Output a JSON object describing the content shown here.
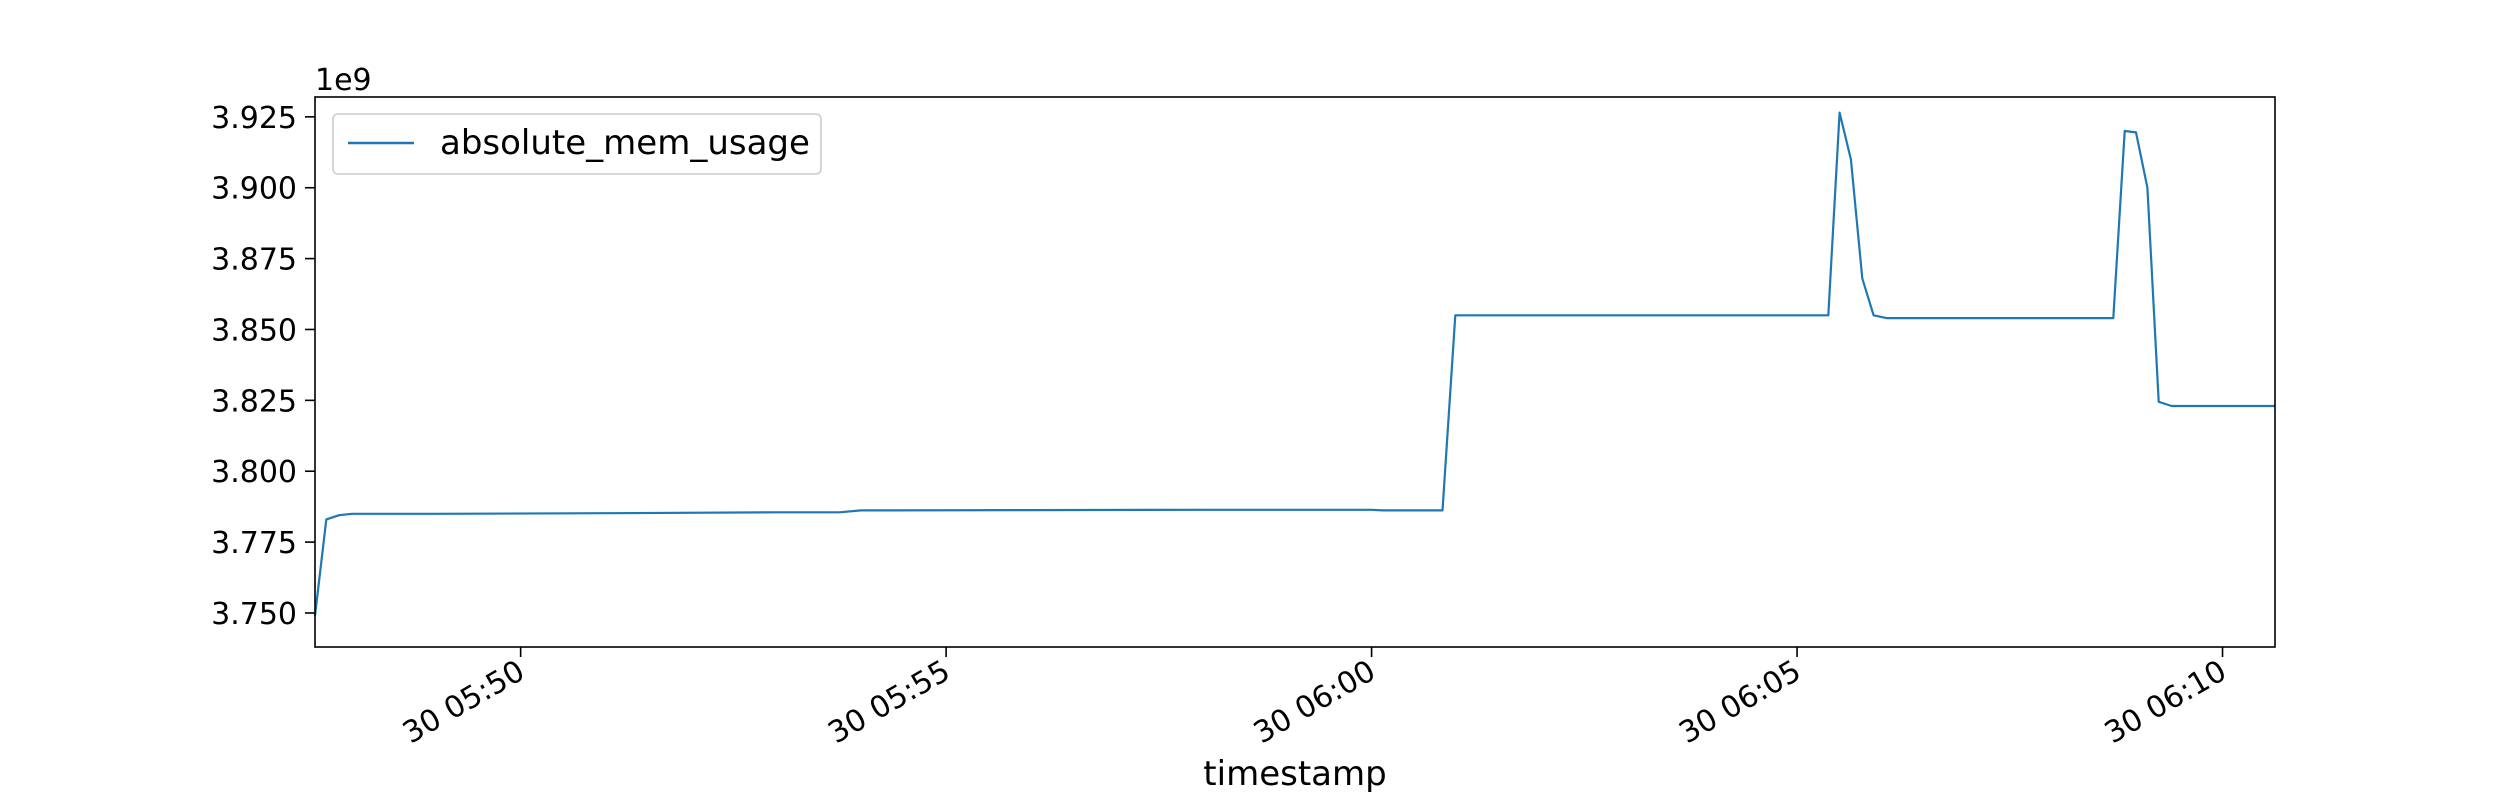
{
  "chart_data": {
    "type": "line",
    "title": "",
    "xlabel": "timestamp",
    "ylabel": "",
    "y_offset_label": "1e9",
    "x_range": [
      "05:47:35",
      "06:10:37"
    ],
    "ylim": [
      3.738,
      3.932
    ],
    "grid": false,
    "legend_position": "top-left",
    "x_ticks": [
      {
        "t": "05:50:00",
        "label": "30 05:50"
      },
      {
        "t": "05:55:00",
        "label": "30 05:55"
      },
      {
        "t": "06:00:00",
        "label": "30 06:00"
      },
      {
        "t": "06:05:00",
        "label": "30 06:05"
      },
      {
        "t": "06:10:00",
        "label": "30 06:10"
      }
    ],
    "y_ticks": [
      {
        "v": 3.75,
        "label": "3.750"
      },
      {
        "v": 3.775,
        "label": "3.775"
      },
      {
        "v": 3.8,
        "label": "3.800"
      },
      {
        "v": 3.825,
        "label": "3.825"
      },
      {
        "v": 3.85,
        "label": "3.850"
      },
      {
        "v": 3.875,
        "label": "3.875"
      },
      {
        "v": 3.9,
        "label": "3.900"
      },
      {
        "v": 3.925,
        "label": "3.925"
      }
    ],
    "series": [
      {
        "name": "absolute_mem_usage",
        "color": "#1f77b4",
        "points": [
          {
            "t": "05:47:35",
            "y": 3.749
          },
          {
            "t": "05:47:43",
            "y": 3.783
          },
          {
            "t": "05:47:52",
            "y": 3.7845
          },
          {
            "t": "05:48:01",
            "y": 3.785
          },
          {
            "t": "05:49:00",
            "y": 3.785
          },
          {
            "t": "05:51:00",
            "y": 3.7852
          },
          {
            "t": "05:53:00",
            "y": 3.7855
          },
          {
            "t": "05:53:45",
            "y": 3.7855
          },
          {
            "t": "05:54:00",
            "y": 3.7862
          },
          {
            "t": "05:56:00",
            "y": 3.7863
          },
          {
            "t": "05:58:00",
            "y": 3.7864
          },
          {
            "t": "06:00:00",
            "y": 3.7864
          },
          {
            "t": "06:00:08",
            "y": 3.7862
          },
          {
            "t": "06:00:50",
            "y": 3.7862
          },
          {
            "t": "06:00:59",
            "y": 3.855
          },
          {
            "t": "06:02:00",
            "y": 3.855
          },
          {
            "t": "06:03:00",
            "y": 3.855
          },
          {
            "t": "06:05:00",
            "y": 3.855
          },
          {
            "t": "06:05:22",
            "y": 3.855
          },
          {
            "t": "06:05:30",
            "y": 3.9265
          },
          {
            "t": "06:05:38",
            "y": 3.91
          },
          {
            "t": "06:05:46",
            "y": 3.868
          },
          {
            "t": "06:05:54",
            "y": 3.855
          },
          {
            "t": "06:06:03",
            "y": 3.854
          },
          {
            "t": "06:07:00",
            "y": 3.854
          },
          {
            "t": "06:08:00",
            "y": 3.854
          },
          {
            "t": "06:08:43",
            "y": 3.854
          },
          {
            "t": "06:08:51",
            "y": 3.92
          },
          {
            "t": "06:08:59",
            "y": 3.9195
          },
          {
            "t": "06:09:07",
            "y": 3.9
          },
          {
            "t": "06:09:15",
            "y": 3.8245
          },
          {
            "t": "06:09:24",
            "y": 3.823
          },
          {
            "t": "06:10:00",
            "y": 3.823
          },
          {
            "t": "06:10:37",
            "y": 3.823
          }
        ]
      }
    ]
  }
}
